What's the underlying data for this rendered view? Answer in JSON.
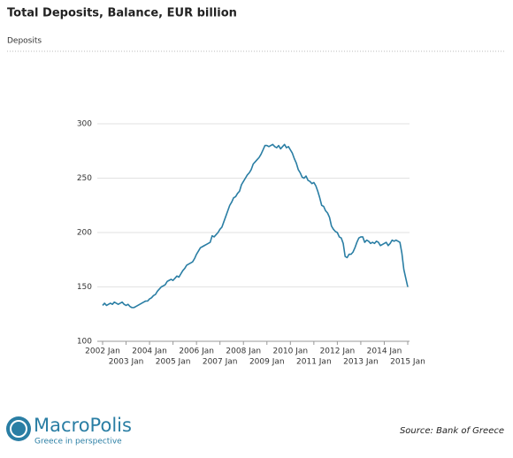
{
  "chart_data": {
    "type": "line",
    "title": "Total Deposits, Balance, EUR billion",
    "subtitle": "Deposits",
    "x": [
      "2002-01",
      "2002-02",
      "2002-03",
      "2002-04",
      "2002-05",
      "2002-06",
      "2002-07",
      "2002-08",
      "2002-09",
      "2002-10",
      "2002-11",
      "2002-12",
      "2003-01",
      "2003-02",
      "2003-03",
      "2003-04",
      "2003-05",
      "2003-06",
      "2003-07",
      "2003-08",
      "2003-09",
      "2003-10",
      "2003-11",
      "2003-12",
      "2004-01",
      "2004-02",
      "2004-03",
      "2004-04",
      "2004-05",
      "2004-06",
      "2004-07",
      "2004-08",
      "2004-09",
      "2004-10",
      "2004-11",
      "2004-12",
      "2005-01",
      "2005-02",
      "2005-03",
      "2005-04",
      "2005-05",
      "2005-06",
      "2005-07",
      "2005-08",
      "2005-09",
      "2005-10",
      "2005-11",
      "2005-12",
      "2006-01",
      "2006-02",
      "2006-03",
      "2006-04",
      "2006-05",
      "2006-06",
      "2006-07",
      "2006-08",
      "2006-09",
      "2006-10",
      "2006-11",
      "2006-12",
      "2007-01",
      "2007-02",
      "2007-03",
      "2007-04",
      "2007-05",
      "2007-06",
      "2007-07",
      "2007-08",
      "2007-09",
      "2007-10",
      "2007-11",
      "2007-12",
      "2008-01",
      "2008-02",
      "2008-03",
      "2008-04",
      "2008-05",
      "2008-06",
      "2008-07",
      "2008-08",
      "2008-09",
      "2008-10",
      "2008-11",
      "2008-12",
      "2009-01",
      "2009-02",
      "2009-03",
      "2009-04",
      "2009-05",
      "2009-06",
      "2009-07",
      "2009-08",
      "2009-09",
      "2009-10",
      "2009-11",
      "2009-12",
      "2010-01",
      "2010-02",
      "2010-03",
      "2010-04",
      "2010-05",
      "2010-06",
      "2010-07",
      "2010-08",
      "2010-09",
      "2010-10",
      "2010-11",
      "2010-12",
      "2011-01",
      "2011-02",
      "2011-03",
      "2011-04",
      "2011-05",
      "2011-06",
      "2011-07",
      "2011-08",
      "2011-09",
      "2011-10",
      "2011-11",
      "2011-12",
      "2012-01",
      "2012-02",
      "2012-03",
      "2012-04",
      "2012-05",
      "2012-06",
      "2012-07",
      "2012-08",
      "2012-09",
      "2012-10",
      "2012-11",
      "2012-12",
      "2013-01",
      "2013-02",
      "2013-03",
      "2013-04",
      "2013-05",
      "2013-06",
      "2013-07",
      "2013-08",
      "2013-09",
      "2013-10",
      "2013-11",
      "2013-12",
      "2014-01",
      "2014-02",
      "2014-03",
      "2014-04",
      "2014-05",
      "2014-06",
      "2014-07",
      "2014-08",
      "2014-09",
      "2014-10",
      "2014-11",
      "2014-12",
      "2015-01"
    ],
    "series": [
      {
        "name": "Deposits",
        "color": "#2a7ea4",
        "values": [
          133,
          135,
          133,
          134,
          135,
          134,
          136,
          135,
          134,
          135,
          136,
          134,
          133,
          134,
          132,
          131,
          131,
          132,
          133,
          134,
          135,
          136,
          137,
          137,
          139,
          140,
          142,
          143,
          146,
          148,
          150,
          151,
          152,
          155,
          156,
          157,
          156,
          158,
          160,
          159,
          162,
          165,
          167,
          170,
          171,
          172,
          173,
          176,
          180,
          183,
          186,
          187,
          188,
          189,
          190,
          191,
          197,
          196,
          198,
          200,
          203,
          205,
          210,
          215,
          220,
          225,
          228,
          232,
          233,
          236,
          238,
          244,
          247,
          250,
          253,
          255,
          258,
          263,
          265,
          267,
          269,
          272,
          276,
          280,
          280,
          279,
          280,
          281,
          279,
          278,
          280,
          277,
          279,
          281,
          278,
          279,
          276,
          273,
          268,
          264,
          258,
          255,
          251,
          250,
          252,
          248,
          247,
          245,
          246,
          243,
          238,
          232,
          225,
          224,
          220,
          218,
          214,
          206,
          203,
          201,
          200,
          196,
          195,
          190,
          178,
          177,
          180,
          180,
          182,
          186,
          191,
          195,
          196,
          196,
          191,
          193,
          192,
          190,
          191,
          190,
          192,
          191,
          188,
          189,
          190,
          191,
          188,
          190,
          193,
          192,
          193,
          192,
          191,
          181,
          166,
          158,
          150
        ]
      }
    ],
    "xlim": [
      "2002-01",
      "2015-01"
    ],
    "xticks": [
      {
        "value": "2002-01",
        "label": "2002 Jan"
      },
      {
        "value": "2003-01",
        "label": "2003 Jan"
      },
      {
        "value": "2004-01",
        "label": "2004 Jan"
      },
      {
        "value": "2005-01",
        "label": "2005 Jan"
      },
      {
        "value": "2006-01",
        "label": "2006 Jan"
      },
      {
        "value": "2007-01",
        "label": "2007 Jan"
      },
      {
        "value": "2008-01",
        "label": "2008 Jan"
      },
      {
        "value": "2009-01",
        "label": "2009 Jan"
      },
      {
        "value": "2010-01",
        "label": "2010 Jan"
      },
      {
        "value": "2011-01",
        "label": "2011 Jan"
      },
      {
        "value": "2012-01",
        "label": "2012 Jan"
      },
      {
        "value": "2013-01",
        "label": "2013 Jan"
      },
      {
        "value": "2014-01",
        "label": "2014 Jan"
      },
      {
        "value": "2015-01",
        "label": "2015 Jan"
      }
    ],
    "ylim": [
      100,
      300
    ],
    "yticks": [
      100,
      150,
      200,
      250,
      300
    ],
    "grid": true
  },
  "footer": {
    "brand": "MacroPolis",
    "tagline": "Greece in perspective",
    "source": "Source: Bank of Greece"
  }
}
